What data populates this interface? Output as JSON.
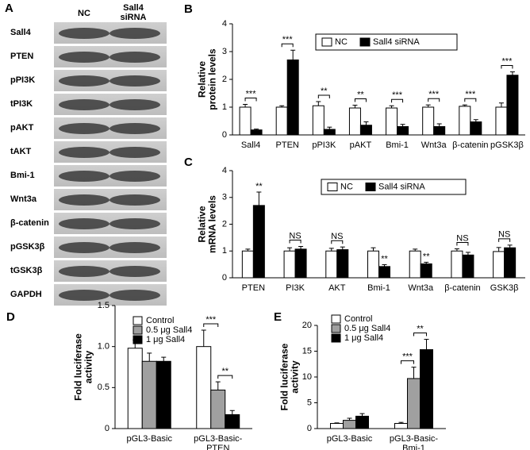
{
  "blot": {
    "panel": "A",
    "columns": [
      "NC",
      "Sall4 siRNA"
    ],
    "rows": [
      "Sall4",
      "PTEN",
      "pPI3K",
      "tPI3K",
      "pAKT",
      "tAKT",
      "Bmi-1",
      "Wnt3a",
      "β-catenin",
      "pGSK3β",
      "tGSK3β",
      "GAPDH"
    ]
  },
  "chart_data": [
    {
      "type": "bar",
      "panel": "B",
      "ylabel": [
        "Relative",
        "protein levels"
      ],
      "categories": [
        "Sall4",
        "PTEN",
        "pPI3K",
        "pAKT",
        "Bmi-1",
        "Wnt3a",
        "β-catenin",
        "pGSK3β"
      ],
      "series": [
        {
          "name": "NC",
          "color": "#ffffff",
          "values": [
            1.0,
            1.0,
            1.05,
            0.97,
            0.97,
            1.0,
            1.03,
            1.0
          ],
          "errors": [
            0.1,
            0.05,
            0.15,
            0.1,
            0.08,
            0.08,
            0.05,
            0.15
          ]
        },
        {
          "name": "Sall4 siRNA",
          "color": "#000000",
          "values": [
            0.18,
            2.7,
            0.2,
            0.35,
            0.3,
            0.3,
            0.47,
            2.15
          ],
          "errors": [
            0.03,
            0.35,
            0.08,
            0.12,
            0.08,
            0.1,
            0.08,
            0.12
          ]
        }
      ],
      "significance": [
        {
          "category": 0,
          "label": "***",
          "from": 0,
          "to": 1
        },
        {
          "category": 1,
          "label": "***",
          "from": 0,
          "to": 1
        },
        {
          "category": 2,
          "label": "**",
          "from": 0,
          "to": 1
        },
        {
          "category": 3,
          "label": "**",
          "from": 0,
          "to": 1
        },
        {
          "category": 4,
          "label": "***",
          "from": 0,
          "to": 1
        },
        {
          "category": 5,
          "label": "***",
          "from": 0,
          "to": 1
        },
        {
          "category": 6,
          "label": "***",
          "from": 0,
          "to": 1
        },
        {
          "category": 7,
          "label": "***",
          "from": 0,
          "to": 1
        }
      ],
      "ylim": [
        0,
        4
      ],
      "yticks": [
        0,
        1,
        2,
        3,
        4
      ],
      "legend": "top-horizontal"
    },
    {
      "type": "bar",
      "panel": "C",
      "ylabel": [
        "Relative",
        "mRNA levels"
      ],
      "categories": [
        "PTEN",
        "PI3K",
        "AKT",
        "Bmi-1",
        "Wnt3a",
        "β-catenin",
        "GSK3β"
      ],
      "series": [
        {
          "name": "NC",
          "color": "#ffffff",
          "values": [
            1.0,
            1.0,
            1.0,
            1.0,
            1.0,
            1.0,
            0.98
          ],
          "errors": [
            0.07,
            0.12,
            0.1,
            0.12,
            0.07,
            0.08,
            0.15
          ]
        },
        {
          "name": "Sall4 siRNA",
          "color": "#000000",
          "values": [
            2.7,
            1.07,
            1.05,
            0.42,
            0.52,
            0.85,
            1.12
          ],
          "errors": [
            0.5,
            0.1,
            0.1,
            0.07,
            0.06,
            0.1,
            0.1
          ]
        }
      ],
      "significance": [
        {
          "category": 0,
          "label": "**",
          "series": 1
        },
        {
          "category": 1,
          "label": "NS",
          "from": 0,
          "to": 1
        },
        {
          "category": 2,
          "label": "NS",
          "from": 0,
          "to": 1
        },
        {
          "category": 3,
          "label": "**",
          "series": 1
        },
        {
          "category": 4,
          "label": "**",
          "series": 1
        },
        {
          "category": 5,
          "label": "NS",
          "from": 0,
          "to": 1
        },
        {
          "category": 6,
          "label": "NS",
          "from": 0,
          "to": 1
        }
      ],
      "ylim": [
        0,
        4
      ],
      "yticks": [
        0,
        1,
        2,
        3,
        4
      ],
      "legend": "top-horizontal"
    },
    {
      "type": "bar",
      "panel": "D",
      "ylabel": [
        "Fold luciferase",
        "activity"
      ],
      "categories": [
        [
          "pGL3-Basic"
        ],
        [
          "pGL3-Basic-",
          "PTEN"
        ]
      ],
      "series": [
        {
          "name": "Control",
          "color": "#ffffff",
          "values": [
            0.98,
            1.0
          ],
          "errors": [
            0.1,
            0.2
          ]
        },
        {
          "name": "0.5 μg Sall4",
          "color": "#a0a0a0",
          "values": [
            0.82,
            0.47
          ],
          "errors": [
            0.1,
            0.1
          ]
        },
        {
          "name": "1 μg Sall4",
          "color": "#000000",
          "values": [
            0.82,
            0.17
          ],
          "errors": [
            0.05,
            0.05
          ]
        }
      ],
      "significance": [
        {
          "category": 1,
          "label": "***",
          "from": 0,
          "to": 1
        },
        {
          "category": 1,
          "label": "**",
          "from": 1,
          "to": 2
        }
      ],
      "ylim": [
        0,
        1.5
      ],
      "yticks": [
        0,
        0.5,
        {
          "value": 1,
          "label": "1.0"
        },
        1.5
      ],
      "legend": "top-left"
    },
    {
      "type": "bar",
      "panel": "E",
      "ylabel": [
        "Fold luciferase",
        "activity"
      ],
      "categories": [
        [
          "pGL3-Basic"
        ],
        [
          "pGL3-Basic-",
          "Bmi-1"
        ]
      ],
      "series": [
        {
          "name": "Control",
          "color": "#ffffff",
          "values": [
            1.0,
            1.0
          ],
          "errors": [
            0.1,
            0.2
          ]
        },
        {
          "name": "0.5 μg Sall4",
          "color": "#a0a0a0",
          "values": [
            1.6,
            9.7
          ],
          "errors": [
            0.4,
            2.2
          ]
        },
        {
          "name": "1 μg Sall4",
          "color": "#000000",
          "values": [
            2.4,
            15.3
          ],
          "errors": [
            0.5,
            2.0
          ]
        }
      ],
      "significance": [
        {
          "category": 1,
          "label": "***",
          "from": 0,
          "to": 1
        },
        {
          "category": 1,
          "label": "**",
          "from": 1,
          "to": 2
        }
      ],
      "ylim": [
        0,
        20
      ],
      "yticks": [
        0,
        5,
        10,
        15,
        20
      ],
      "legend": "top-left"
    }
  ]
}
